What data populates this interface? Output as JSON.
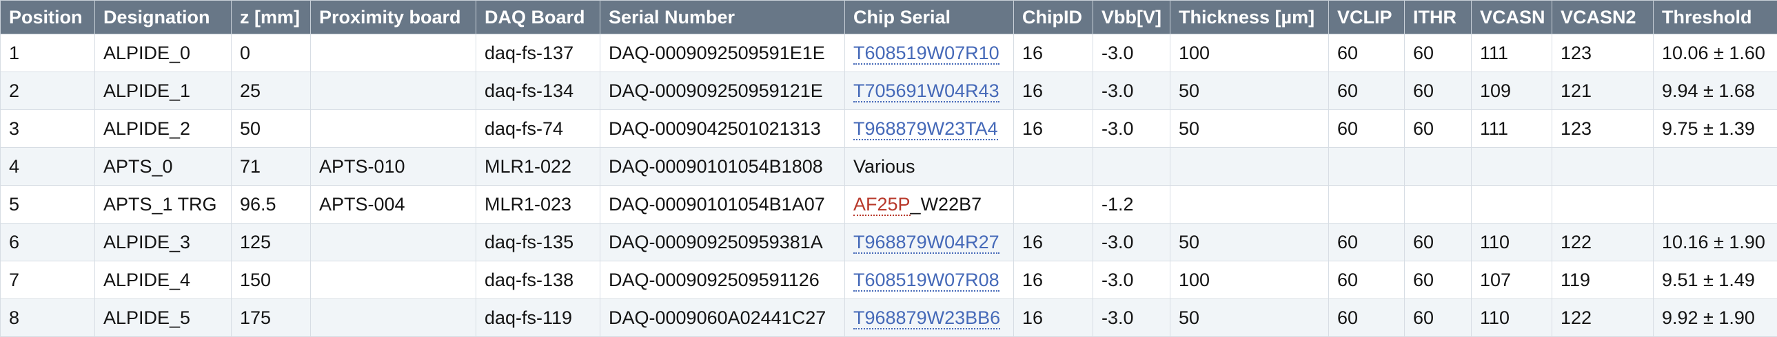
{
  "columns": [
    "Position",
    "Designation",
    "z [mm]",
    "Proximity board",
    "DAQ Board",
    "Serial Number",
    "Chip Serial",
    "ChipID",
    "Vbb[V]",
    "Thickness [µm]",
    "VCLIP",
    "ITHR",
    "VCASN",
    "VCASN2",
    "Threshold"
  ],
  "rows": [
    {
      "position": "1",
      "designation": "ALPIDE_0",
      "z": "0",
      "proximity": "",
      "daq": "daq-fs-137",
      "serial": "DAQ-0009092509591E1E",
      "chip_link": "T608519W07R10",
      "chip_link_style": "link",
      "chip_suffix": "",
      "chipid": "16",
      "vbb": "-3.0",
      "thickness": "100",
      "vclip": "60",
      "ithr": "60",
      "vcasn": "111",
      "vcasn2": "123",
      "threshold": "10.06 ± 1.60"
    },
    {
      "position": "2",
      "designation": "ALPIDE_1",
      "z": "25",
      "proximity": "",
      "daq": "daq-fs-134",
      "serial": "DAQ-000909250959121E",
      "chip_link": "T705691W04R43",
      "chip_link_style": "link",
      "chip_suffix": "",
      "chipid": "16",
      "vbb": "-3.0",
      "thickness": "50",
      "vclip": "60",
      "ithr": "60",
      "vcasn": "109",
      "vcasn2": "121",
      "threshold": "9.94 ± 1.68"
    },
    {
      "position": "3",
      "designation": "ALPIDE_2",
      "z": "50",
      "proximity": "",
      "daq": "daq-fs-74",
      "serial": "DAQ-0009042501021313",
      "chip_link": "T968879W23TA4",
      "chip_link_style": "link",
      "chip_suffix": "",
      "chipid": "16",
      "vbb": "-3.0",
      "thickness": "50",
      "vclip": "60",
      "ithr": "60",
      "vcasn": "111",
      "vcasn2": "123",
      "threshold": "9.75 ± 1.39"
    },
    {
      "position": "4",
      "designation": "APTS_0",
      "z": "71",
      "proximity": "APTS-010",
      "daq": "MLR1-022",
      "serial": "DAQ-00090101054B1808",
      "chip_link": "",
      "chip_link_style": "none",
      "chip_suffix": "Various",
      "chipid": "",
      "vbb": "",
      "thickness": "",
      "vclip": "",
      "ithr": "",
      "vcasn": "",
      "vcasn2": "",
      "threshold": ""
    },
    {
      "position": "5",
      "designation": "APTS_1 TRG",
      "z": "96.5",
      "proximity": "APTS-004",
      "daq": "MLR1-023",
      "serial": "DAQ-00090101054B1A07",
      "chip_link": "AF25P",
      "chip_link_style": "missing",
      "chip_suffix": "_W22B7",
      "chipid": "",
      "vbb": "-1.2",
      "thickness": "",
      "vclip": "",
      "ithr": "",
      "vcasn": "",
      "vcasn2": "",
      "threshold": ""
    },
    {
      "position": "6",
      "designation": "ALPIDE_3",
      "z": "125",
      "proximity": "",
      "daq": "daq-fs-135",
      "serial": "DAQ-000909250959381A",
      "chip_link": "T968879W04R27",
      "chip_link_style": "link",
      "chip_suffix": "",
      "chipid": "16",
      "vbb": "-3.0",
      "thickness": "50",
      "vclip": "60",
      "ithr": "60",
      "vcasn": "110",
      "vcasn2": "122",
      "threshold": "10.16 ± 1.90"
    },
    {
      "position": "7",
      "designation": "ALPIDE_4",
      "z": "150",
      "proximity": "",
      "daq": "daq-fs-138",
      "serial": "DAQ-0009092509591126",
      "chip_link": "T608519W07R08",
      "chip_link_style": "link",
      "chip_suffix": "",
      "chipid": "16",
      "vbb": "-3.0",
      "thickness": "100",
      "vclip": "60",
      "ithr": "60",
      "vcasn": "107",
      "vcasn2": "119",
      "threshold": "9.51 ± 1.49"
    },
    {
      "position": "8",
      "designation": "ALPIDE_5",
      "z": "175",
      "proximity": "",
      "daq": "daq-fs-119",
      "serial": "DAQ-0009060A02441C27",
      "chip_link": "T968879W23BB6",
      "chip_link_style": "link",
      "chip_suffix": "",
      "chipid": "16",
      "vbb": "-3.0",
      "thickness": "50",
      "vclip": "60",
      "ithr": "60",
      "vcasn": "110",
      "vcasn2": "122",
      "threshold": "9.92 ± 1.90"
    }
  ],
  "colors": {
    "header_bg": "#687787",
    "header_text": "#ffffff",
    "row_alt_bg": "#f1f5f8",
    "link": "#4569b8",
    "missing_link": "#b8382a"
  }
}
